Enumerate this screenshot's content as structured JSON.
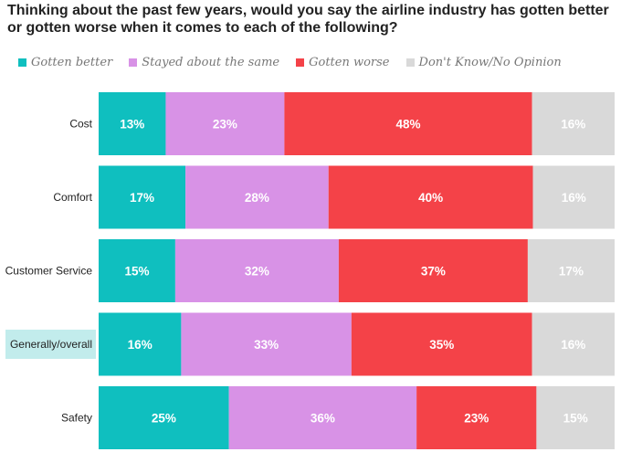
{
  "chart_data": {
    "type": "bar",
    "orientation": "horizontal",
    "stacked": true,
    "title": "Thinking about the past few years, would you say the airline industry has gotten better or gotten worse when it comes to each of the following?",
    "categories": [
      "Cost",
      "Comfort",
      "Customer Service",
      "Generally/overall",
      "Safety"
    ],
    "highlighted_category": "Generally/overall",
    "series": [
      {
        "name": "Gotten better",
        "color": "#0fbfbf",
        "values": [
          13,
          17,
          15,
          16,
          25
        ]
      },
      {
        "name": "Stayed about the same",
        "color": "#d892e6",
        "values": [
          23,
          28,
          32,
          33,
          36
        ]
      },
      {
        "name": "Gotten worse",
        "color": "#f44248",
        "values": [
          48,
          40,
          37,
          35,
          23
        ]
      },
      {
        "name": "Don't Know/No Opinion",
        "color": "#d9d9d9",
        "values": [
          16,
          16,
          17,
          16,
          15
        ]
      }
    ],
    "value_suffix": "%",
    "xlim": [
      0,
      100
    ],
    "legend_position": "top",
    "grid": false
  }
}
